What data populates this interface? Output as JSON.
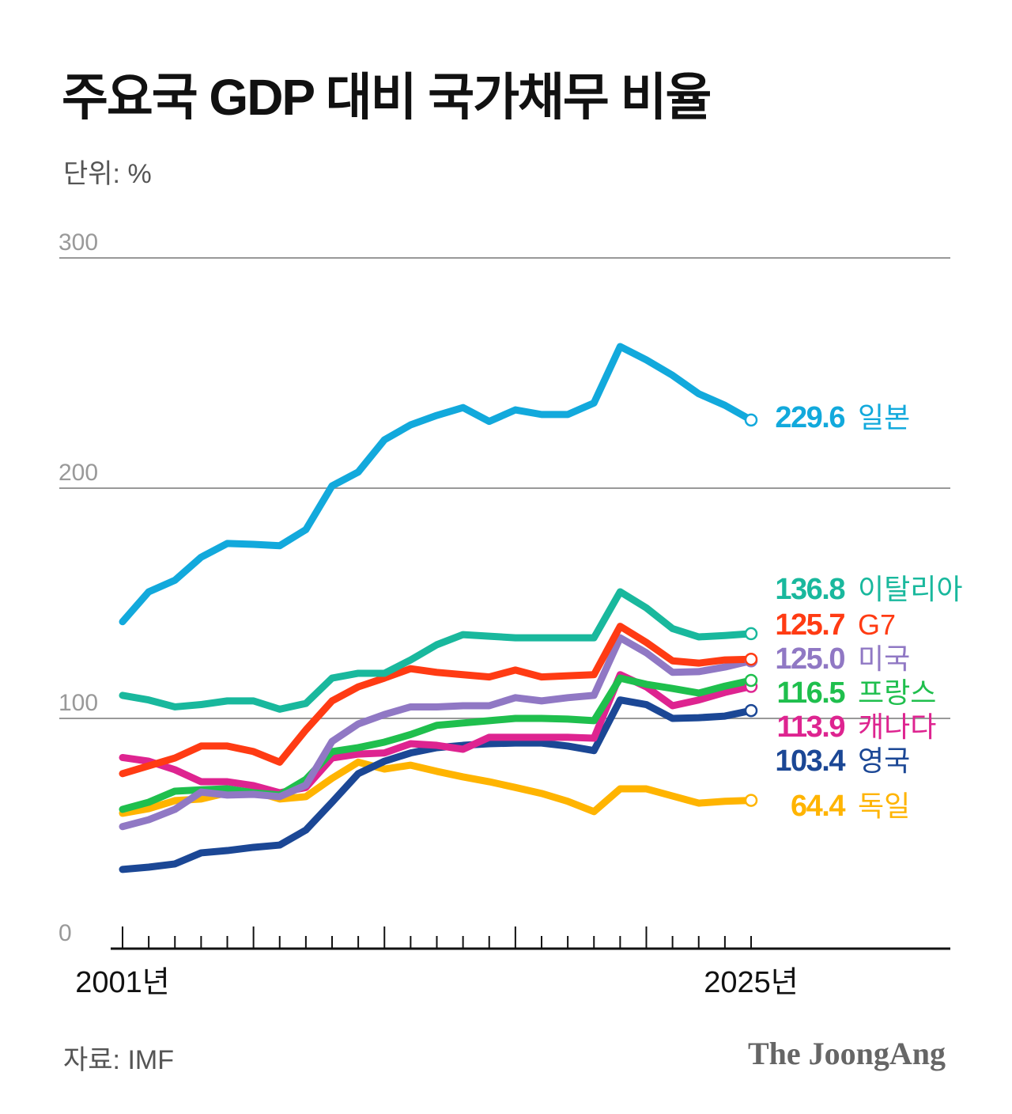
{
  "title": "주요국 GDP 대비 국가채무 비율",
  "unit": "단위: %",
  "source": "자료: IMF",
  "logo": "The JoongAng",
  "chart_data": {
    "type": "line",
    "title": "주요국 GDP 대비 국가채무 비율",
    "ylabel": "단위: %",
    "ylim": [
      0,
      300
    ],
    "yticks": [
      "0",
      "100",
      "200",
      "300"
    ],
    "x": [
      2001,
      2002,
      2003,
      2004,
      2005,
      2006,
      2007,
      2008,
      2009,
      2010,
      2011,
      2012,
      2013,
      2014,
      2015,
      2016,
      2017,
      2018,
      2019,
      2020,
      2021,
      2022,
      2023,
      2024,
      2025
    ],
    "xtick_labels": {
      "first": "2001년",
      "last": "2025년"
    },
    "grid": true,
    "series": [
      {
        "name": "독일",
        "label_value": "64.4",
        "color": "#ffb400",
        "values": [
          58.8,
          60.8,
          64.3,
          65,
          67.7,
          68.4,
          65,
          66,
          74,
          81,
          78,
          79.7,
          77,
          74.6,
          72.5,
          70,
          67.4,
          64,
          59.5,
          69.4,
          69.4,
          66.3,
          63.2,
          64,
          64.4
        ]
      },
      {
        "name": "영국",
        "label_value": "103.4",
        "color": "#1b4795",
        "values": [
          34.4,
          35.4,
          36.8,
          41.6,
          42.6,
          44,
          45,
          51.5,
          63.6,
          76,
          81.4,
          85,
          87.3,
          88.3,
          89,
          89.3,
          89.3,
          88,
          86,
          108,
          106,
          100,
          100.3,
          101,
          103.4
        ]
      },
      {
        "name": "캐나다",
        "label_value": "113.9",
        "color": "#de2490",
        "values": [
          83,
          81.4,
          77.7,
          72.5,
          72.5,
          70.8,
          67.7,
          70,
          82.8,
          84.5,
          85,
          89,
          88.3,
          86.6,
          91.8,
          91.8,
          91.8,
          91.8,
          91.4,
          119,
          113.7,
          105.5,
          108,
          111.3,
          113.9
        ]
      },
      {
        "name": "프랑스",
        "label_value": "116.5",
        "color": "#1fbf4d",
        "values": [
          60.5,
          63.6,
          68.4,
          69,
          69.4,
          67.7,
          66.7,
          73.5,
          85.6,
          87.3,
          89.7,
          93,
          97,
          98,
          99,
          100,
          100,
          99.7,
          99,
          117.5,
          114.8,
          113,
          111,
          114,
          116.5
        ]
      },
      {
        "name": "미국",
        "label_value": "125.0",
        "color": "#9078c4",
        "values": [
          53,
          56,
          60.5,
          68,
          66.7,
          67,
          66,
          71,
          90,
          97.6,
          101.7,
          105,
          105,
          105.5,
          105.5,
          109,
          107.6,
          109,
          110,
          135,
          128.5,
          120,
          120.3,
          122.3,
          125.0
        ]
      },
      {
        "name": "G7",
        "label_value": "125.7",
        "color": "#ff3b13",
        "values": [
          76,
          79.4,
          82.8,
          88,
          88,
          85.6,
          81,
          95,
          107.6,
          113.7,
          117.5,
          121.6,
          120,
          119,
          118,
          121,
          118,
          118.5,
          119,
          140,
          133,
          125,
          124,
          125.4,
          125.7
        ]
      },
      {
        "name": "이탈리아",
        "label_value": "136.8",
        "color": "#19b89d",
        "values": [
          110,
          108,
          105,
          106,
          107.6,
          107.6,
          104,
          106.5,
          117.5,
          119.6,
          119.6,
          125.4,
          132,
          136.4,
          135.7,
          135,
          135,
          135,
          135,
          155,
          148,
          139,
          135.4,
          136,
          136.8
        ]
      },
      {
        "name": "일본",
        "label_value": "229.6",
        "color": "#12a9dc",
        "values": [
          142,
          155,
          160,
          170,
          176,
          175.6,
          175,
          182,
          201,
          207,
          221,
          227.5,
          231.6,
          235,
          229,
          234,
          232,
          232,
          237,
          261.5,
          255.7,
          249,
          241,
          236,
          229.6
        ]
      }
    ]
  }
}
